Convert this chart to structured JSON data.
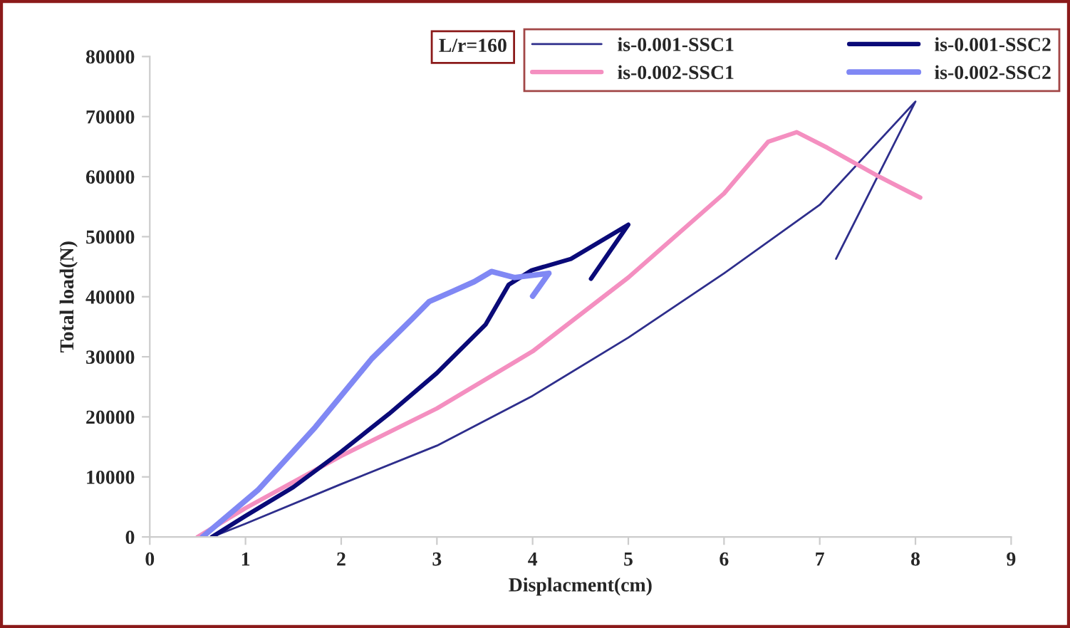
{
  "chart_data": {
    "type": "line",
    "xlabel": "Displacment(cm)",
    "ylabel": "Total load(N)",
    "xlim": [
      0,
      9
    ],
    "xticks": [
      0,
      1,
      2,
      3,
      4,
      5,
      6,
      7,
      8,
      9
    ],
    "ylim": [
      0,
      80000
    ],
    "yticks": [
      0,
      10000,
      20000,
      30000,
      40000,
      50000,
      60000,
      70000,
      80000
    ],
    "grid": false,
    "legend": "top right",
    "marker": "none",
    "annotations": [
      "L/r=160"
    ],
    "series": [
      {
        "name": "is-0.001-SSC1",
        "color": "#2e2e8c",
        "x": [
          0.65,
          1,
          2,
          3,
          4,
          5,
          6,
          7,
          8.0,
          7.17
        ],
        "values": [
          0,
          2200,
          8800,
          15200,
          23500,
          33200,
          43900,
          55300,
          72500,
          46300
        ]
      },
      {
        "name": "is-0.002-SSC1",
        "color": "#f48fc0",
        "x": [
          0.5,
          1,
          2,
          3,
          4,
          5,
          6,
          6.46,
          6.76,
          7.08,
          7.62,
          8.05
        ],
        "values": [
          0,
          4800,
          13500,
          21400,
          30900,
          43200,
          57200,
          65800,
          67400,
          64800,
          60000,
          56500
        ]
      },
      {
        "name": "is-0.001-SSC2",
        "color": "#0a0a78",
        "x": [
          0.65,
          1,
          1.5,
          2,
          2.5,
          3,
          3.51,
          3.75,
          3.99,
          4.4,
          5.0,
          4.61
        ],
        "values": [
          0,
          3500,
          8300,
          14200,
          20500,
          27300,
          35400,
          42000,
          44400,
          46300,
          52000,
          43000
        ]
      },
      {
        "name": "is-0.002-SSC2",
        "color": "#8088f4",
        "x": [
          0.55,
          1.13,
          1.73,
          2.32,
          2.74,
          2.92,
          3.15,
          3.39,
          3.57,
          3.81,
          4.17,
          4.0
        ],
        "values": [
          0,
          7800,
          18300,
          29700,
          36300,
          39200,
          40800,
          42500,
          44200,
          43200,
          43900,
          40100
        ]
      }
    ]
  }
}
